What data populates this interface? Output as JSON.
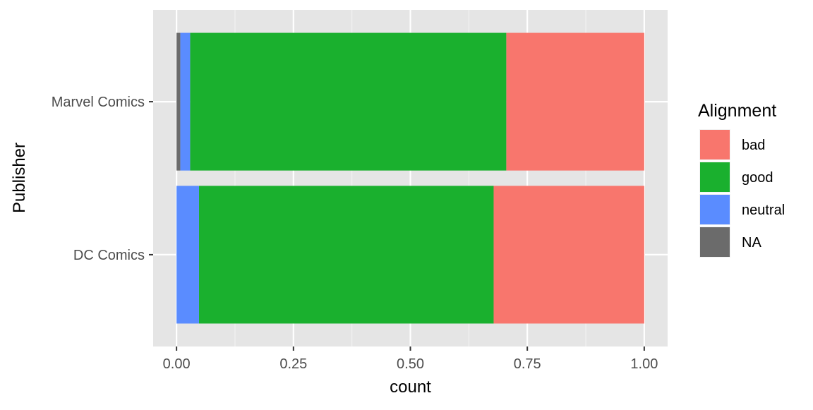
{
  "chart_data": {
    "type": "bar",
    "orientation": "horizontal",
    "stacked": "fill",
    "categories": [
      "Marvel Comics",
      "DC Comics"
    ],
    "series": [
      {
        "name": "bad",
        "color": "#F8766D",
        "values": [
          0.295,
          0.322
        ]
      },
      {
        "name": "good",
        "color": "#1AB02E",
        "values": [
          0.676,
          0.63
        ]
      },
      {
        "name": "neutral",
        "color": "#5A8CFF",
        "values": [
          0.021,
          0.048
        ]
      },
      {
        "name": "NA",
        "color": "#6B6B6B",
        "values": [
          0.008,
          0.0
        ]
      }
    ],
    "xlabel": "count",
    "ylabel": "Publisher",
    "xlim": [
      -0.05,
      1.05
    ],
    "xticks": [
      0,
      0.25,
      0.5,
      0.75,
      1.0
    ],
    "xtick_labels": [
      "0.00",
      "0.25",
      "0.50",
      "0.75",
      "1.00"
    ],
    "legend_title": "Alignment",
    "legend_position": "right",
    "grid": true,
    "panel_background": "#E5E5E5"
  }
}
